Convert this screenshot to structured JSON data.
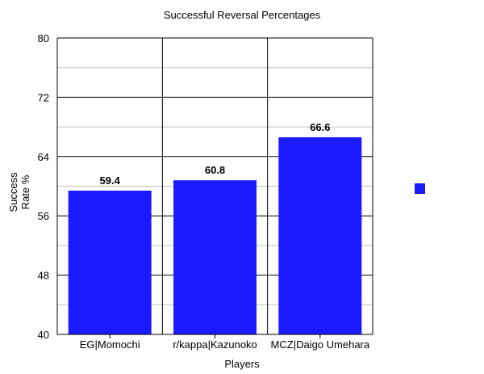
{
  "chart_data": {
    "type": "bar",
    "title": "Successful Reversal Percentages",
    "xlabel": "Players",
    "ylabel_lines": [
      "Success",
      "Rate %"
    ],
    "categories": [
      "EG|Momochi",
      "r/kappa|Kazunoko",
      "MCZ|Daigo Umehara"
    ],
    "series": [
      {
        "values": [
          59.4,
          60.8,
          66.6
        ]
      }
    ],
    "data_labels": [
      "59.4",
      "60.8",
      "66.6"
    ],
    "ylim": [
      40,
      80
    ],
    "yticks": [
      40,
      48,
      56,
      64,
      72,
      80
    ],
    "minor_gridlines": [
      44,
      52,
      60,
      68,
      76
    ],
    "grid": true,
    "legend": "right, unlabeled swatch",
    "colors": {
      "bar": "#1a1aff",
      "legend_swatch": "#1a1aff",
      "major_grid": "#000000",
      "minor_grid": "#c0c0c0"
    }
  }
}
